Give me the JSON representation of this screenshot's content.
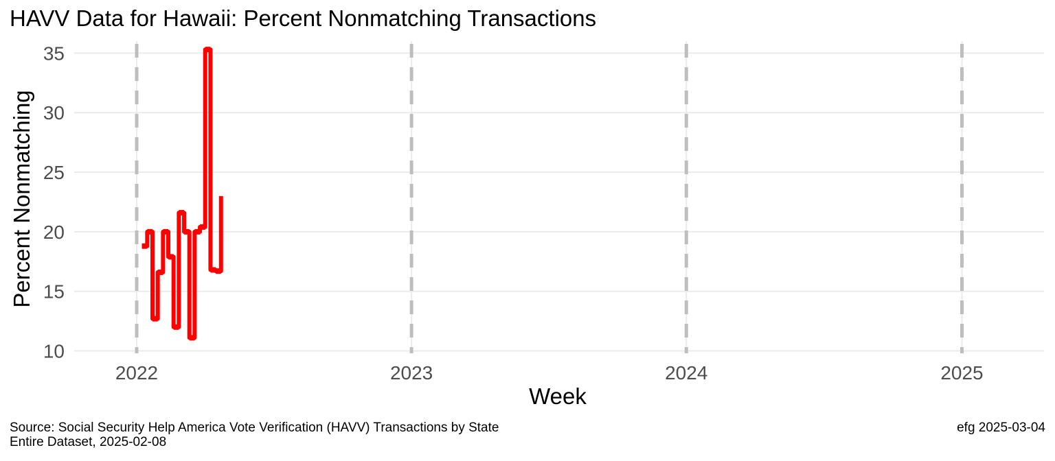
{
  "chart_data": {
    "type": "line",
    "title": "HAVV Data for Hawaii:  Percent Nonmatching Transactions",
    "xlabel": "Week",
    "ylabel": "Percent Nonmatching",
    "caption_line1": "Source:  Social Security Help America Vote Verification (HAVV) Transactions by State",
    "caption_line2": "Entire Dataset, 2025-02-08",
    "credit": "efg 2025-03-04",
    "x_ticks": [
      "2022",
      "2023",
      "2024",
      "2025"
    ],
    "y_ticks": [
      10,
      15,
      20,
      25,
      30,
      35
    ],
    "ylim": [
      9.8,
      36
    ],
    "xlim": [
      "2021-10-10",
      "2025-04-20"
    ],
    "year_dividers": [
      "2022-01-01",
      "2023-01-01",
      "2024-01-01",
      "2025-01-01"
    ],
    "series": [
      {
        "color": "#ff0000",
        "step": true,
        "x": [
          "2022-01-08",
          "2022-01-15",
          "2022-01-22",
          "2022-01-29",
          "2022-02-05",
          "2022-02-12",
          "2022-02-19",
          "2022-02-26",
          "2022-03-05",
          "2022-03-12",
          "2022-03-19",
          "2022-03-26",
          "2022-04-02",
          "2022-04-09",
          "2022-04-16",
          "2022-04-23"
        ],
        "y": [
          18.8,
          20.0,
          12.7,
          16.6,
          20.0,
          17.9,
          12.0,
          21.6,
          20.0,
          11.1,
          20.0,
          20.4,
          35.3,
          16.8,
          16.7,
          23.0
        ]
      }
    ]
  }
}
